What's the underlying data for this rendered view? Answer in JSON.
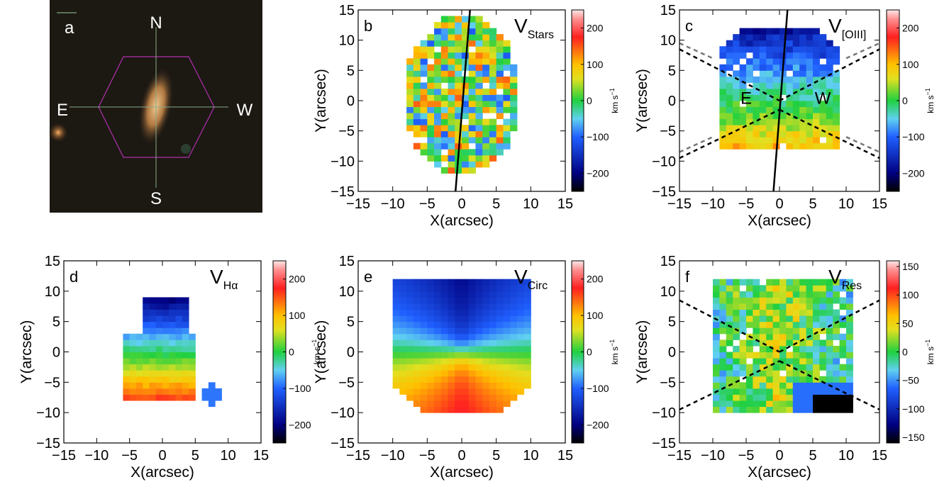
{
  "chart_data": [
    {
      "type": "image",
      "panel": "a",
      "labels": [
        "N",
        "S",
        "E",
        "W"
      ]
    },
    {
      "type": "map",
      "panel": "b",
      "title": "V",
      "title_sub": "Stars",
      "xlabel": "X(arcsec)",
      "ylabel": "Y(arcsec)",
      "xlim": [
        -15,
        15
      ],
      "ylim": [
        -15,
        15
      ],
      "xticks": [
        {
          "value": -15,
          "label": "−15"
        },
        {
          "value": -10,
          "label": "−10"
        },
        {
          "value": -5,
          "label": "−5"
        },
        0,
        5,
        10,
        15
      ],
      "yticks": [
        {
          "value": -15,
          "label": "−15"
        },
        {
          "value": -10,
          "label": "−10"
        },
        {
          "value": -5,
          "label": "−5"
        },
        0,
        5,
        10,
        15
      ],
      "colorbar": {
        "lim": [
          -250,
          250
        ],
        "ticks": [
          {
            "value": -200,
            "label": "−200"
          },
          {
            "value": -100,
            "label": "−100"
          },
          0,
          100,
          200
        ],
        "label": "km s",
        "label_sup": "−1"
      }
    },
    {
      "type": "map",
      "panel": "c",
      "title": "V",
      "title_sub": "[OIII]",
      "xlabel": "X(arcsec)",
      "ylabel": "Y(arcsec)",
      "xlim": [
        -15,
        15
      ],
      "ylim": [
        -15,
        15
      ],
      "xticks": [
        {
          "value": -15,
          "label": "−15"
        },
        {
          "value": -10,
          "label": "−10"
        },
        {
          "value": -5,
          "label": "−5"
        },
        0,
        5,
        10,
        15
      ],
      "yticks": [
        {
          "value": -15,
          "label": "−15"
        },
        {
          "value": -10,
          "label": "−10"
        },
        {
          "value": -5,
          "label": "−5"
        },
        0,
        5,
        10,
        15
      ],
      "annotations": [
        "E",
        "W"
      ],
      "colorbar": {
        "lim": [
          -250,
          250
        ],
        "ticks": [
          {
            "value": -200,
            "label": "−200"
          },
          {
            "value": -100,
            "label": "−100"
          },
          0,
          100,
          200
        ],
        "label": "km s",
        "label_sup": "−1"
      }
    },
    {
      "type": "map",
      "panel": "d",
      "title": "V",
      "title_sub": "Hα",
      "xlabel": "X(arcsec)",
      "ylabel": "Y(arcsec)",
      "xlim": [
        -15,
        15
      ],
      "ylim": [
        -15,
        15
      ],
      "xticks": [
        {
          "value": -15,
          "label": "−15"
        },
        {
          "value": -10,
          "label": "−10"
        },
        {
          "value": -5,
          "label": "−5"
        },
        0,
        5,
        10,
        15
      ],
      "yticks": [
        {
          "value": -15,
          "label": "−15"
        },
        {
          "value": -10,
          "label": "−10"
        },
        {
          "value": -5,
          "label": "−5"
        },
        0,
        5,
        10,
        15
      ],
      "colorbar": {
        "lim": [
          -250,
          250
        ],
        "ticks": [
          {
            "value": -200,
            "label": "−200"
          },
          {
            "value": -100,
            "label": "−100"
          },
          0,
          100,
          200
        ],
        "label": "km s",
        "label_sup": "−1"
      }
    },
    {
      "type": "map",
      "panel": "e",
      "title": "V",
      "title_sub": "Circ",
      "xlabel": "X(arcsec)",
      "ylabel": "Y(arcsec)",
      "xlim": [
        -15,
        15
      ],
      "ylim": [
        -15,
        15
      ],
      "xticks": [
        {
          "value": -15,
          "label": "−15"
        },
        {
          "value": -10,
          "label": "−10"
        },
        {
          "value": -5,
          "label": "−5"
        },
        0,
        5,
        10,
        15
      ],
      "yticks": [
        {
          "value": -15,
          "label": "−15"
        },
        {
          "value": -10,
          "label": "−10"
        },
        {
          "value": -5,
          "label": "−5"
        },
        0,
        5,
        10,
        15
      ],
      "colorbar": {
        "lim": [
          -250,
          250
        ],
        "ticks": [
          {
            "value": -200,
            "label": "−200"
          },
          {
            "value": -100,
            "label": "−100"
          },
          0,
          100,
          200
        ],
        "label": "km s",
        "label_sup": "−1"
      }
    },
    {
      "type": "map",
      "panel": "f",
      "title": "V",
      "title_sub": "Res",
      "xlabel": "X(arcsec)",
      "ylabel": "Y(arcsec)",
      "xlim": [
        -15,
        15
      ],
      "ylim": [
        -15,
        15
      ],
      "xticks": [
        {
          "value": -15,
          "label": "−15"
        },
        {
          "value": -10,
          "label": "−10"
        },
        {
          "value": -5,
          "label": "−5"
        },
        0,
        5,
        10,
        15
      ],
      "yticks": [
        {
          "value": -15,
          "label": "−15"
        },
        {
          "value": -10,
          "label": "−10"
        },
        {
          "value": -5,
          "label": "−5"
        },
        0,
        5,
        10,
        15
      ],
      "colorbar": {
        "lim": [
          -160,
          160
        ],
        "ticks": [
          {
            "value": -150,
            "label": "−150"
          },
          {
            "value": -100,
            "label": "−100"
          },
          {
            "value": -50,
            "label": "−50"
          },
          0,
          50,
          100,
          150
        ],
        "label": "km s",
        "label_sup": "−1"
      }
    }
  ]
}
